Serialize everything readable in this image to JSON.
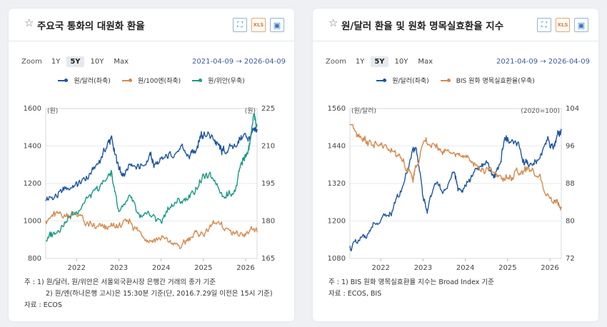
{
  "panels": [
    {
      "title": "주요국 통화의 대원화 환율",
      "tools": {
        "expand": "⛶",
        "excel": "XLS",
        "image": "▣"
      },
      "zoom": {
        "label": "Zoom",
        "buttons": [
          "1Y",
          "5Y",
          "10Y",
          "Max"
        ],
        "active": "5Y"
      },
      "date_range": "2021-04-09  →  2026-04-09",
      "notes": [
        "주 : 1)  원/달러, 원/위안은 서울외국환시장 은행간 거래의 종가 기준",
        "2)  원/엔(하나은행 고시)은 15:30분 기준(단, 2016.7.29일 이전은 15시 기준)",
        "자료 :  ECOS"
      ]
    },
    {
      "title": "원/달러 환율 및 원화 명목실효환율 지수",
      "tools": {
        "expand": "⛶",
        "excel": "XLS",
        "image": "▣"
      },
      "zoom": {
        "label": "Zoom",
        "buttons": [
          "1Y",
          "5Y",
          "10Y",
          "Max"
        ],
        "active": "5Y"
      },
      "date_range": "2021-04-09  →  2026-04-09",
      "notes": [
        "주 : 1)  BIS 원화 명목실효환율 지수는 Broad Index 기준",
        "자료 :  ECOS, BIS"
      ]
    }
  ],
  "chart_data": [
    {
      "type": "line",
      "title": "주요국 통화의 대원화 환율",
      "left_axis": {
        "unit": "(원)",
        "ticks": [
          800,
          1000,
          1200,
          1400,
          1600
        ],
        "range": [
          800,
          1600
        ]
      },
      "right_axis": {
        "unit": "(원)",
        "ticks": [
          165,
          180,
          195,
          210,
          225
        ],
        "range": [
          165,
          225
        ]
      },
      "x_ticks": [
        "2022",
        "2023",
        "2024",
        "2025",
        "2026"
      ],
      "x_range": [
        2021.27,
        2026.27
      ],
      "series": [
        {
          "name": "원/달러(좌축)",
          "axis": "left",
          "color": "#1f56a1",
          "x": [
            2021.27,
            2021.5,
            2021.75,
            2022.0,
            2022.25,
            2022.5,
            2022.75,
            2022.83,
            2023.0,
            2023.1,
            2023.25,
            2023.5,
            2023.75,
            2023.83,
            2024.0,
            2024.25,
            2024.5,
            2024.67,
            2024.83,
            2024.95,
            2025.0,
            2025.25,
            2025.4,
            2025.5,
            2025.75,
            2025.95,
            2026.1,
            2026.2,
            2026.27
          ],
          "y": [
            1115,
            1130,
            1175,
            1190,
            1230,
            1300,
            1420,
            1440,
            1270,
            1230,
            1320,
            1290,
            1350,
            1300,
            1310,
            1360,
            1380,
            1340,
            1390,
            1470,
            1460,
            1440,
            1380,
            1370,
            1400,
            1460,
            1440,
            1480,
            1490
          ]
        },
        {
          "name": "원/100엔(좌축)",
          "axis": "left",
          "color": "#d48a4f",
          "x": [
            2021.27,
            2021.5,
            2021.75,
            2022.0,
            2022.25,
            2022.5,
            2022.75,
            2023.0,
            2023.25,
            2023.5,
            2023.75,
            2024.0,
            2024.25,
            2024.5,
            2024.75,
            2025.0,
            2025.25,
            2025.5,
            2025.75,
            2026.0,
            2026.27
          ],
          "y": [
            1010,
            1030,
            1030,
            1040,
            980,
            960,
            960,
            970,
            1000,
            940,
            900,
            910,
            880,
            860,
            930,
            930,
            990,
            960,
            940,
            940,
            940
          ]
        },
        {
          "name": "원/위안(우축)",
          "axis": "right",
          "color": "#1a9a86",
          "x": [
            2021.27,
            2021.5,
            2021.75,
            2022.0,
            2022.25,
            2022.5,
            2022.75,
            2022.83,
            2023.0,
            2023.25,
            2023.5,
            2023.75,
            2024.0,
            2024.25,
            2024.5,
            2024.75,
            2025.0,
            2025.25,
            2025.5,
            2025.75,
            2025.9,
            2026.0,
            2026.1,
            2026.2,
            2026.27
          ],
          "y": [
            172,
            176,
            180,
            184,
            189,
            192,
            198,
            199,
            184,
            190,
            180,
            182,
            180,
            187,
            188,
            191,
            198,
            197,
            190,
            193,
            204,
            206,
            211,
            222,
            218
          ]
        }
      ]
    },
    {
      "type": "line",
      "title": "원/달러 환율 및 원화 명목실효환율 지수",
      "left_axis": {
        "unit": "(원/달러)",
        "ticks": [
          1080,
          1200,
          1320,
          1440,
          1560
        ],
        "range": [
          1080,
          1560
        ]
      },
      "right_axis": {
        "unit": "(2020=100)",
        "ticks": [
          72,
          80,
          88,
          96,
          104
        ],
        "range": [
          72,
          104
        ]
      },
      "x_ticks": [
        "2022",
        "2023",
        "2024",
        "2025",
        "2026"
      ],
      "x_range": [
        2021.27,
        2026.27
      ],
      "series": [
        {
          "name": "원/달러(좌축)",
          "axis": "left",
          "color": "#1f56a1",
          "x": [
            2021.27,
            2021.5,
            2021.75,
            2022.0,
            2022.25,
            2022.5,
            2022.75,
            2022.83,
            2023.0,
            2023.1,
            2023.25,
            2023.5,
            2023.75,
            2023.83,
            2024.0,
            2024.25,
            2024.5,
            2024.67,
            2024.83,
            2024.95,
            2025.0,
            2025.25,
            2025.4,
            2025.5,
            2025.75,
            2025.95,
            2026.1,
            2026.2,
            2026.27
          ],
          "y": [
            1115,
            1130,
            1175,
            1190,
            1230,
            1300,
            1420,
            1440,
            1270,
            1230,
            1320,
            1290,
            1350,
            1300,
            1310,
            1360,
            1380,
            1340,
            1390,
            1470,
            1460,
            1440,
            1380,
            1370,
            1400,
            1460,
            1440,
            1480,
            1490
          ]
        },
        {
          "name": "BIS 원화 명목실효환율(우축)",
          "axis": "right",
          "color": "#d48a4f",
          "x": [
            2021.27,
            2021.5,
            2021.75,
            2022.0,
            2022.25,
            2022.5,
            2022.75,
            2022.83,
            2023.0,
            2023.25,
            2023.5,
            2023.75,
            2024.0,
            2024.25,
            2024.5,
            2024.75,
            2025.0,
            2025.25,
            2025.5,
            2025.75,
            2026.0,
            2026.2,
            2026.27
          ],
          "y": [
            101,
            98.5,
            96.5,
            96,
            95,
            93,
            89,
            91,
            97,
            96,
            95,
            94.5,
            94,
            92,
            91,
            90,
            89,
            90,
            91,
            89,
            85,
            84,
            83
          ]
        }
      ]
    }
  ]
}
